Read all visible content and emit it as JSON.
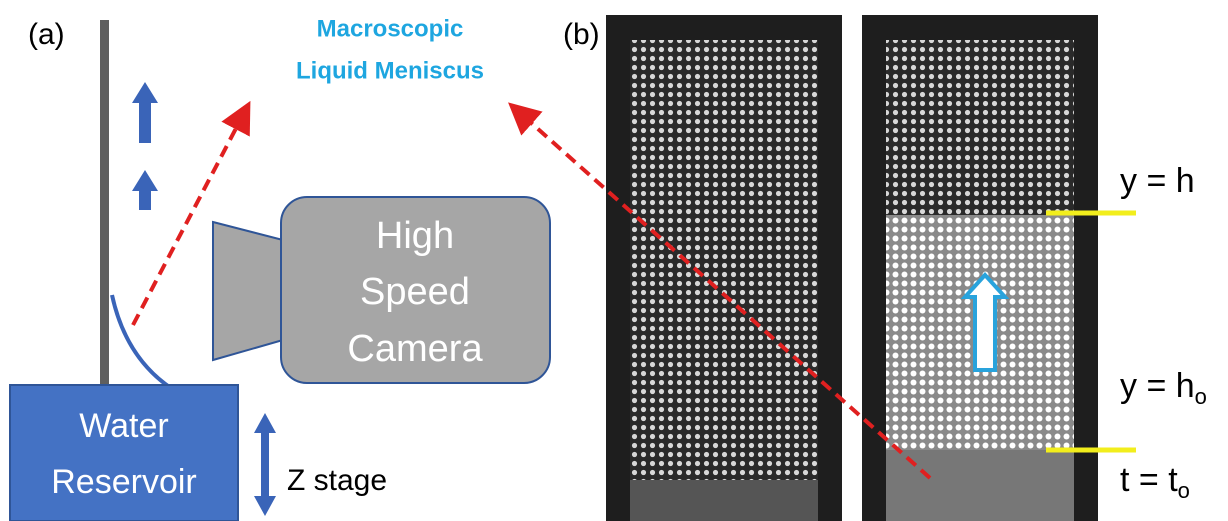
{
  "panel_a": {
    "label": "(a)",
    "title": [
      "Macroscopic",
      "Liquid Meniscus"
    ],
    "camera": [
      "High",
      "Speed",
      "Camera"
    ],
    "reservoir": [
      "Water",
      "Reservoir"
    ],
    "stage": "Z stage"
  },
  "panel_b": {
    "label": "(b)",
    "top_line": "y = h",
    "base_line": {
      "text": "y = h",
      "sub": "o"
    },
    "time": {
      "text": "t = t",
      "sub": "o"
    }
  }
}
